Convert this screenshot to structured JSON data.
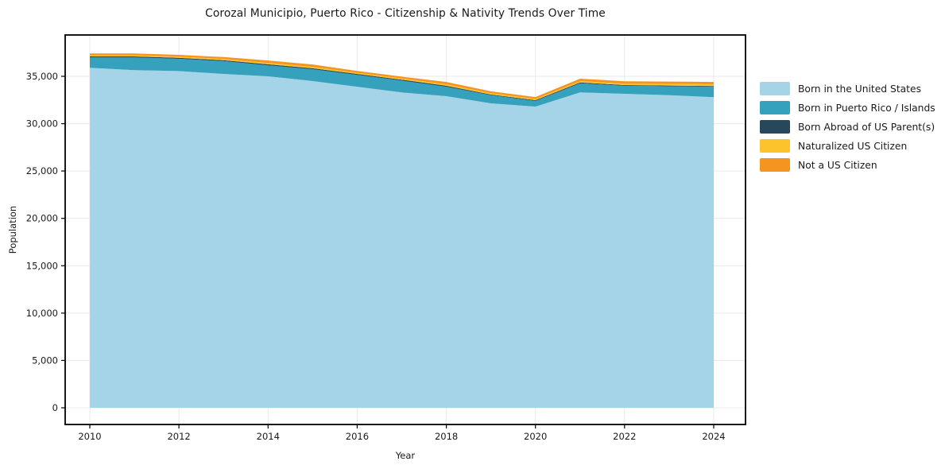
{
  "figure": {
    "title": "Corozal Municipio, Puerto Rico - Citizenship & Nativity Trends Over Time",
    "xlabel": "Year",
    "ylabel": "Population"
  },
  "chart_data": {
    "type": "area",
    "stacked": true,
    "title": "Corozal Municipio, Puerto Rico - Citizenship & Nativity Trends Over Time",
    "xlabel": "Year",
    "ylabel": "Population",
    "grid": true,
    "legend_position": "right-outside",
    "x": [
      2010,
      2011,
      2012,
      2013,
      2014,
      2015,
      2016,
      2017,
      2018,
      2019,
      2020,
      2021,
      2022,
      2023,
      2024
    ],
    "series": [
      {
        "name": "Born in the United States",
        "color": "#a5d3e8",
        "values": [
          35900,
          35650,
          35550,
          35250,
          35000,
          34500,
          33900,
          33300,
          32900,
          32150,
          31800,
          33300,
          33150,
          33000,
          32800
        ]
      },
      {
        "name": "Born in Puerto Rico / Islands",
        "color": "#35a1bd",
        "values": [
          1100,
          1350,
          1300,
          1350,
          1150,
          1250,
          1250,
          1250,
          1000,
          850,
          600,
          950,
          850,
          950,
          1100
        ]
      },
      {
        "name": "Born Abroad of US Parent(s)",
        "color": "#27485c",
        "values": [
          100,
          100,
          100,
          100,
          120,
          100,
          100,
          100,
          100,
          80,
          80,
          100,
          80,
          80,
          80
        ]
      },
      {
        "name": "Naturalized US Citizen",
        "color": "#fcc32d",
        "values": [
          120,
          120,
          120,
          130,
          150,
          150,
          120,
          120,
          150,
          130,
          130,
          150,
          150,
          170,
          170
        ]
      },
      {
        "name": "Not a US Citizen",
        "color": "#f5941f",
        "values": [
          200,
          200,
          200,
          200,
          250,
          250,
          200,
          200,
          250,
          200,
          200,
          250,
          250,
          250,
          250
        ]
      }
    ],
    "totals": [
      37420,
      37420,
      37270,
      37030,
      36670,
      36250,
      35570,
      34970,
      34400,
      33410,
      32810,
      34750,
      34480,
      34450,
      34400
    ],
    "xticks": [
      2010,
      2012,
      2014,
      2016,
      2018,
      2020,
      2022,
      2024
    ],
    "yticks": [
      {
        "value": 0,
        "label": "0"
      },
      {
        "value": 5000,
        "label": "5,000"
      },
      {
        "value": 10000,
        "label": "10,000"
      },
      {
        "value": 15000,
        "label": "15,000"
      },
      {
        "value": 20000,
        "label": "20,000"
      },
      {
        "value": 25000,
        "label": "25,000"
      },
      {
        "value": 30000,
        "label": "30,000"
      },
      {
        "value": 35000,
        "label": "35,000"
      }
    ],
    "xlim": [
      2009.45,
      2024.71
    ],
    "ylim": [
      -1790,
      39420
    ]
  },
  "colors": {
    "background": "#ffffff",
    "grid": "#e9e9e9",
    "spine": "#000000",
    "text": "#1a1a1a"
  }
}
